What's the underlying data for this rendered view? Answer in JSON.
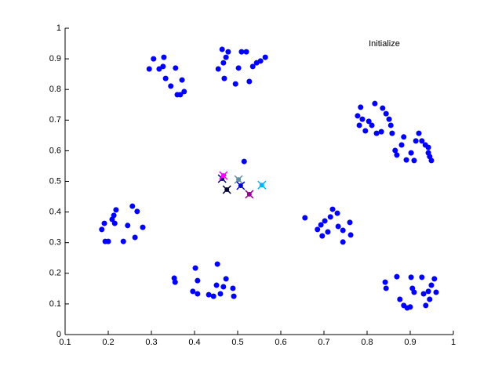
{
  "chart_data": {
    "type": "scatter",
    "title": "Initialize",
    "xlim": [
      0.1,
      1
    ],
    "ylim": [
      0,
      1
    ],
    "xticks": [
      0.1,
      0.2,
      0.3,
      0.4,
      0.5,
      0.6,
      0.7,
      0.8,
      0.9,
      1
    ],
    "yticks": [
      0,
      0.1,
      0.2,
      0.3,
      0.4,
      0.5,
      0.6,
      0.7,
      0.8,
      0.9,
      1
    ],
    "grid": false,
    "series": [
      {
        "marker": "dot",
        "color": "#0000ff",
        "x": [
          0.295,
          0.305,
          0.329,
          0.318,
          0.327,
          0.333,
          0.345,
          0.356,
          0.36,
          0.367,
          0.371,
          0.376,
          0.455,
          0.464,
          0.467,
          0.473,
          0.478,
          0.469,
          0.495,
          0.502,
          0.509,
          0.52,
          0.527,
          0.535,
          0.544,
          0.553,
          0.564,
          0.778,
          0.782,
          0.785,
          0.789,
          0.796,
          0.804,
          0.811,
          0.818,
          0.822,
          0.833,
          0.836,
          0.844,
          0.851,
          0.855,
          0.858,
          0.865,
          0.869,
          0.88,
          0.885,
          0.891,
          0.902,
          0.909,
          0.913,
          0.92,
          0.927,
          0.935,
          0.942,
          0.945,
          0.949,
          0.942,
          0.185,
          0.191,
          0.193,
          0.2,
          0.209,
          0.213,
          0.218,
          0.215,
          0.235,
          0.245,
          0.256,
          0.267,
          0.262,
          0.28,
          0.353,
          0.355,
          0.396,
          0.402,
          0.407,
          0.407,
          0.433,
          0.444,
          0.451,
          0.453,
          0.46,
          0.467,
          0.473,
          0.489,
          0.491,
          0.656,
          0.685,
          0.693,
          0.696,
          0.702,
          0.709,
          0.715,
          0.72,
          0.731,
          0.733,
          0.744,
          0.744,
          0.76,
          0.762,
          0.842,
          0.844,
          0.869,
          0.876,
          0.885,
          0.893,
          0.9,
          0.902,
          0.905,
          0.909,
          0.927,
          0.931,
          0.936,
          0.942,
          0.945,
          0.949,
          0.956,
          0.96,
          0.515
        ],
        "y": [
          0.867,
          0.9,
          0.905,
          0.867,
          0.875,
          0.836,
          0.811,
          0.87,
          0.783,
          0.783,
          0.831,
          0.793,
          0.867,
          0.931,
          0.887,
          0.905,
          0.923,
          0.836,
          0.818,
          0.87,
          0.923,
          0.923,
          0.826,
          0.875,
          0.887,
          0.893,
          0.905,
          0.714,
          0.683,
          0.742,
          0.703,
          0.665,
          0.696,
          0.683,
          0.754,
          0.657,
          0.662,
          0.739,
          0.721,
          0.703,
          0.683,
          0.657,
          0.601,
          0.586,
          0.619,
          0.645,
          0.57,
          0.593,
          0.568,
          0.632,
          0.657,
          0.632,
          0.619,
          0.593,
          0.581,
          0.568,
          0.611,
          0.343,
          0.363,
          0.304,
          0.304,
          0.376,
          0.389,
          0.407,
          0.363,
          0.304,
          0.356,
          0.419,
          0.402,
          0.317,
          0.35,
          0.184,
          0.171,
          0.141,
          0.217,
          0.176,
          0.133,
          0.13,
          0.125,
          0.161,
          0.23,
          0.133,
          0.156,
          0.182,
          0.151,
          0.125,
          0.381,
          0.343,
          0.358,
          0.322,
          0.371,
          0.335,
          0.384,
          0.409,
          0.396,
          0.353,
          0.34,
          0.302,
          0.366,
          0.325,
          0.171,
          0.151,
          0.189,
          0.115,
          0.095,
          0.087,
          0.09,
          0.187,
          0.151,
          0.138,
          0.187,
          0.133,
          0.095,
          0.141,
          0.115,
          0.161,
          0.182,
          0.138,
          0.565
        ]
      },
      {
        "marker": "x",
        "colors": [
          "#000080",
          "#ff00ff",
          "#000033",
          "#5f8fa0",
          "#0000cc",
          "#990099",
          "#00b7ff"
        ],
        "x": [
          0.464,
          0.467,
          0.475,
          0.502,
          0.507,
          0.527,
          0.556
        ],
        "y": [
          0.509,
          0.519,
          0.473,
          0.506,
          0.486,
          0.458,
          0.488
        ]
      }
    ]
  }
}
